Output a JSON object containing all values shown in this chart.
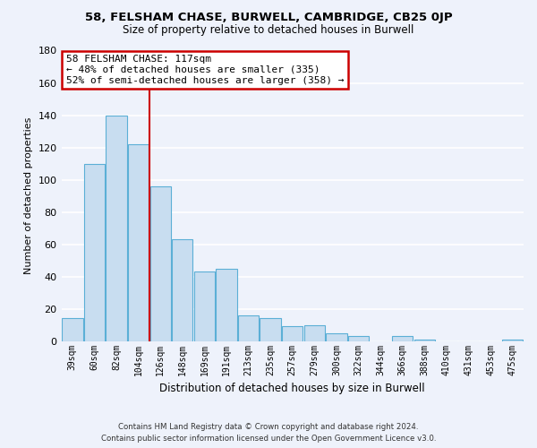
{
  "title": "58, FELSHAM CHASE, BURWELL, CAMBRIDGE, CB25 0JP",
  "subtitle": "Size of property relative to detached houses in Burwell",
  "xlabel": "Distribution of detached houses by size in Burwell",
  "ylabel": "Number of detached properties",
  "categories": [
    "39sqm",
    "60sqm",
    "82sqm",
    "104sqm",
    "126sqm",
    "148sqm",
    "169sqm",
    "191sqm",
    "213sqm",
    "235sqm",
    "257sqm",
    "279sqm",
    "300sqm",
    "322sqm",
    "344sqm",
    "366sqm",
    "388sqm",
    "410sqm",
    "431sqm",
    "453sqm",
    "475sqm"
  ],
  "values": [
    14,
    110,
    140,
    122,
    96,
    63,
    43,
    45,
    16,
    14,
    9,
    10,
    5,
    3,
    0,
    3,
    1,
    0,
    0,
    0,
    1
  ],
  "bar_color": "#c8ddf0",
  "bar_edge_color": "#5bafd6",
  "property_bar_index": 4,
  "vline_color": "#cc0000",
  "annotation_line1": "58 FELSHAM CHASE: 117sqm",
  "annotation_line2": "← 48% of detached houses are smaller (335)",
  "annotation_line3": "52% of semi-detached houses are larger (358) →",
  "annotation_box_color": "white",
  "annotation_box_edge_color": "#cc0000",
  "ylim": [
    0,
    180
  ],
  "yticks": [
    0,
    20,
    40,
    60,
    80,
    100,
    120,
    140,
    160,
    180
  ],
  "footer_line1": "Contains HM Land Registry data © Crown copyright and database right 2024.",
  "footer_line2": "Contains public sector information licensed under the Open Government Licence v3.0.",
  "bg_color": "#eef2fb",
  "grid_color": "white"
}
